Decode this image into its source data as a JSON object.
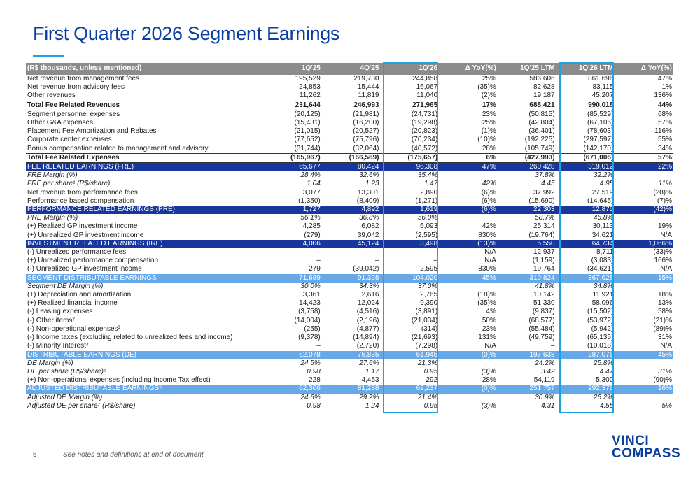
{
  "title": "First Quarter 2026 Segment Earnings",
  "table": {
    "headers": [
      "(R$ thousands, unless mentioned)",
      "1Q'25",
      "4Q'25",
      "1Q'26",
      "Δ YoY(%)",
      "1Q'25 LTM",
      "1Q'26 LTM",
      "Δ YoY(%)"
    ],
    "rows": [
      {
        "style": "normal",
        "cells": [
          "Net revenue from management fees",
          "195,529",
          "219,730",
          "244,858",
          "25%",
          "586,606",
          "861,696",
          "47%"
        ]
      },
      {
        "style": "normal",
        "cells": [
          "Net revenue from advisory fees",
          "24,853",
          "15,444",
          "16,067",
          "(35)%",
          "82,628",
          "83,115",
          "1%"
        ]
      },
      {
        "style": "normal",
        "cells": [
          "Other revenues",
          "11,262",
          "11,819",
          "11,040",
          "(2)%",
          "19,187",
          "45,207",
          "136%"
        ]
      },
      {
        "style": "bold",
        "cells": [
          "Total Fee Related Revenues",
          "231,644",
          "246,993",
          "271,965",
          "17%",
          "688,421",
          "990,018",
          "44%"
        ]
      },
      {
        "style": "normal",
        "cells": [
          "Segment personnel expenses",
          "(20,125)",
          "(21,981)",
          "(24,731)",
          "23%",
          "(50,815)",
          "(85,529)",
          "68%"
        ]
      },
      {
        "style": "normal",
        "cells": [
          "Other G&A expenses",
          "(15,431)",
          "(16,200)",
          "(19,298)",
          "25%",
          "(42,804)",
          "(67,106)",
          "57%"
        ]
      },
      {
        "style": "normal",
        "cells": [
          "Placement Fee Amortization and Rebates",
          "(21,015)",
          "(20,527)",
          "(20,823)",
          "(1)%",
          "(36,401)",
          "(78,603)",
          "116%"
        ]
      },
      {
        "style": "normal",
        "cells": [
          "Corporate center expenses",
          "(77,652)",
          "(75,796)",
          "(70,234)",
          "(10)%",
          "(192,225)",
          "(297,597)",
          "55%"
        ]
      },
      {
        "style": "normal",
        "cells": [
          "Bonus compensation related to management and advisory",
          "(31,744)",
          "(32,064)",
          "(40,572)",
          "28%",
          "(105,749)",
          "(142,170)",
          "34%"
        ]
      },
      {
        "style": "bold",
        "cells": [
          "Total Fee Related Expenses",
          "(165,967)",
          "(166,569)",
          "(175,657)",
          "6%",
          "(427,993)",
          "(671,006)",
          "57%"
        ]
      },
      {
        "style": "dark",
        "cells": [
          "FEE RELATED EARNINGS (FRE)",
          "65,677",
          "80,424",
          "96,308",
          "47%",
          "260,428",
          "319,012",
          "22%"
        ]
      },
      {
        "style": "italic",
        "cells": [
          "FRE Margin (%)",
          "28.4%",
          "32.6%",
          "35.4%",
          "",
          "37.8%",
          "32.2%",
          ""
        ]
      },
      {
        "style": "italic",
        "cells": [
          "FRE per share¹ (R$/share)",
          "1.04",
          "1.23",
          "1.47",
          "42%",
          "4.45",
          "4.95",
          "11%"
        ]
      },
      {
        "style": "normal",
        "cells": [
          "Net revenue from performance fees",
          "3,077",
          "13,301",
          "2,890",
          "(6)%",
          "37,992",
          "27,519",
          "(28)%"
        ]
      },
      {
        "style": "normal",
        "cells": [
          "Performance based compensation",
          "(1,350)",
          "(8,409)",
          "(1,271)",
          "(6)%",
          "(15,690)",
          "(14,645)",
          "(7)%"
        ]
      },
      {
        "style": "dark",
        "cells": [
          "PERFORMANCE RELATED EARNINGS (PRE)",
          "1,727",
          "4,892",
          "1,619",
          "(6)%",
          "22,303",
          "12,875",
          "(42)%"
        ]
      },
      {
        "style": "italic",
        "cells": [
          "PRE Margin (%)",
          "56.1%",
          "36.8%",
          "56.0%",
          "",
          "58.7%",
          "46.8%",
          ""
        ]
      },
      {
        "style": "normal",
        "cells": [
          "(+) Realized GP investment income",
          "4,285",
          "6,082",
          "6,093",
          "42%",
          "25,314",
          "30,113",
          "19%"
        ]
      },
      {
        "style": "normal",
        "cells": [
          "(+) Unrealized GP investment income",
          "(279)",
          "39,042",
          "(2,595)",
          "830%",
          "(19,764)",
          "34,621",
          "N/A"
        ]
      },
      {
        "style": "dark",
        "cells": [
          "INVESTMENT RELATED EARNINGS (IRE)",
          "4,006",
          "45,124",
          "3,498",
          "(13)%",
          "5,550",
          "64,734",
          "1,066%"
        ]
      },
      {
        "style": "normal",
        "cells": [
          "(-) Unrealized performance fees",
          "–",
          "–",
          "–",
          "N/A",
          "12,937",
          "8,711",
          "(33)%"
        ]
      },
      {
        "style": "normal",
        "cells": [
          "(+) Unrealized performance compensation",
          "–",
          "–",
          "–",
          "N/A",
          "(1,159)",
          "(3,083)",
          "166%"
        ]
      },
      {
        "style": "normal",
        "cells": [
          "(-) Unrealized GP investment income",
          "279",
          "(39,042)",
          "2,595",
          "830%",
          "19,764",
          "(34,621)",
          "N/A"
        ]
      },
      {
        "style": "light",
        "cells": [
          "SEGMENT DISTRIBUTABLE EARNINGS",
          "71,689",
          "91,398",
          "104,020",
          "45%",
          "319,824",
          "367,628",
          "15%"
        ]
      },
      {
        "style": "italic",
        "cells": [
          "Segment DE Margin (%)",
          "30.0%",
          "34.3%",
          "37.0%",
          "",
          "41.8%",
          "34.8%",
          ""
        ]
      },
      {
        "style": "normal",
        "cells": [
          "(+) Depreciation and amortization",
          "3,361",
          "2,616",
          "2,765",
          "(18)%",
          "10,142",
          "11,921",
          "18%"
        ]
      },
      {
        "style": "normal",
        "cells": [
          "(+) Realized financial income",
          "14,423",
          "12,024",
          "9,390",
          "(35)%",
          "51,330",
          "58,096",
          "13%"
        ]
      },
      {
        "style": "normal",
        "cells": [
          "(-) Leasing expenses",
          "(3,758)",
          "(4,516)",
          "(3,891)",
          "4%",
          "(9,837)",
          "(15,502)",
          "58%"
        ]
      },
      {
        "style": "normal",
        "cells": [
          "(-) Other items²",
          "(14,004)",
          "(2,196)",
          "(21,034)",
          "50%",
          "(68,577)",
          "(53,972)",
          "(21)%"
        ]
      },
      {
        "style": "normal",
        "cells": [
          "(-) Non-operational expenses³",
          "(255)",
          "(4,877)",
          "(314)",
          "23%",
          "(55,484)",
          "(5,942)",
          "(89)%"
        ]
      },
      {
        "style": "normal",
        "cells": [
          "(-) Income taxes (excluding related to unrealized fees and income)",
          "(9,378)",
          "(14,894)",
          "(21,693)",
          "131%",
          "(49,759)",
          "(65,135)",
          "31%"
        ]
      },
      {
        "style": "normal",
        "cells": [
          "(-) Minority Interest⁴",
          "–",
          "(2,720)",
          "(7,298)",
          "N/A",
          "–",
          "(10,018)",
          "N/A"
        ]
      },
      {
        "style": "light",
        "cells": [
          "DISTRIBUTABLE EARNINGS (DE)",
          "62,078",
          "76,835",
          "61,945",
          "(0)%",
          "197,638",
          "287,076",
          "45%"
        ]
      },
      {
        "style": "italic",
        "cells": [
          "DE Margin (%)",
          "24.5%",
          "27.6%",
          "21.3%",
          "",
          "24.2%",
          "25.8%",
          ""
        ]
      },
      {
        "style": "italic",
        "cells": [
          "DE per share (R$/share)⁵",
          "0.98",
          "1.17",
          "0.95",
          "(3)%",
          "3.42",
          "4.47",
          "31%"
        ]
      },
      {
        "style": "normal",
        "cells": [
          "(+) Non-operational expenses (including Income Tax effect)",
          "228",
          "4,453",
          "292",
          "28%",
          "54,119",
          "5,300",
          "(90)%"
        ]
      },
      {
        "style": "light",
        "cells": [
          "ADJUSTED DISTRIBUTABLE EARNINGS⁶",
          "62,306",
          "81,288",
          "62,237",
          "(0)%",
          "251,757",
          "292,376",
          "16%"
        ]
      },
      {
        "style": "italic",
        "cells": [
          "Adjusted DE Margin (%)",
          "24.6%",
          "29.2%",
          "21.4%",
          "",
          "30.9%",
          "26.2%",
          ""
        ]
      },
      {
        "style": "italic",
        "cells": [
          "Adjusted DE per share⁷ (R$/share)",
          "0.98",
          "1.24",
          "0.95",
          "(3)%",
          "4.31",
          "4.55",
          "5%"
        ]
      }
    ]
  },
  "footer": {
    "page_number": "5",
    "note": "See notes and definitions at end of document"
  },
  "logo": {
    "line1": "VINCI",
    "line2": "COMPASS"
  },
  "colors": {
    "title": "#0b3f9e",
    "accent": "#1fa3e0",
    "header_gray": "#8c8c8c",
    "dark_band": "#17379e",
    "light_band": "#66a8e8"
  }
}
